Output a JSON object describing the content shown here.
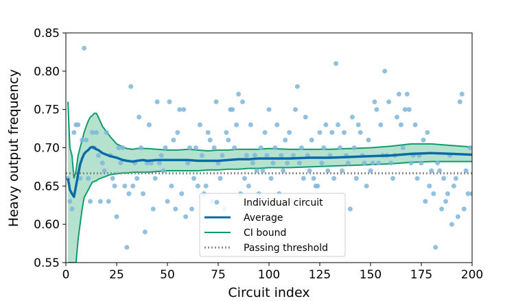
{
  "chart_data": {
    "type": "scatter",
    "xlabel": "Circuit index",
    "ylabel": "Heavy output frequency",
    "xlim": [
      0,
      200
    ],
    "ylim": [
      0.55,
      0.85
    ],
    "xticks": [
      0,
      25,
      50,
      75,
      100,
      125,
      150,
      175,
      200
    ],
    "yticks": [
      0.55,
      0.6,
      0.65,
      0.7,
      0.75,
      0.8,
      0.85
    ],
    "grid": false,
    "legend_position": "bottom-center",
    "series": [
      {
        "name": "Individual circuit",
        "kind": "scatter",
        "color": "#7eb6d9",
        "points": [
          [
            1,
            0.66
          ],
          [
            2,
            0.63
          ],
          [
            3,
            0.62
          ],
          [
            4,
            0.72
          ],
          [
            5,
            0.73
          ],
          [
            6,
            0.73
          ],
          [
            7,
            0.66
          ],
          [
            8,
            0.71
          ],
          [
            9,
            0.83
          ],
          [
            10,
            0.71
          ],
          [
            11,
            0.66
          ],
          [
            12,
            0.63
          ],
          [
            13,
            0.72
          ],
          [
            14,
            0.7
          ],
          [
            15,
            0.72
          ],
          [
            16,
            0.69
          ],
          [
            17,
            0.63
          ],
          [
            18,
            0.68
          ],
          [
            19,
            0.67
          ],
          [
            20,
            0.72
          ],
          [
            21,
            0.63
          ],
          [
            22,
            0.69
          ],
          [
            23,
            0.66
          ],
          [
            24,
            0.65
          ],
          [
            25,
            0.61
          ],
          [
            26,
            0.7
          ],
          [
            27,
            0.68
          ],
          [
            28,
            0.7
          ],
          [
            29,
            0.65
          ],
          [
            30,
            0.57
          ],
          [
            31,
            0.64
          ],
          [
            32,
            0.78
          ],
          [
            33,
            0.65
          ],
          [
            34,
            0.68
          ],
          [
            35,
            0.66
          ],
          [
            36,
            0.74
          ],
          [
            37,
            0.7
          ],
          [
            38,
            0.64
          ],
          [
            39,
            0.59
          ],
          [
            40,
            0.68
          ],
          [
            41,
            0.73
          ],
          [
            42,
            0.68
          ],
          [
            43,
            0.62
          ],
          [
            44,
            0.66
          ],
          [
            45,
            0.76
          ],
          [
            46,
            0.68
          ],
          [
            47,
            0.69
          ],
          [
            48,
            0.67
          ],
          [
            49,
            0.7
          ],
          [
            50,
            0.63
          ],
          [
            51,
            0.76
          ],
          [
            52,
            0.65
          ],
          [
            53,
            0.71
          ],
          [
            54,
            0.62
          ],
          [
            55,
            0.72
          ],
          [
            56,
            0.75
          ],
          [
            57,
            0.64
          ],
          [
            58,
            0.75
          ],
          [
            59,
            0.61
          ],
          [
            60,
            0.68
          ],
          [
            61,
            0.7
          ],
          [
            62,
            0.62
          ],
          [
            63,
            0.66
          ],
          [
            64,
            0.7
          ],
          [
            65,
            0.65
          ],
          [
            66,
            0.73
          ],
          [
            67,
            0.69
          ],
          [
            68,
            0.64
          ],
          [
            69,
            0.65
          ],
          [
            70,
            0.72
          ],
          [
            71,
            0.71
          ],
          [
            72,
            0.63
          ],
          [
            73,
            0.7
          ],
          [
            74,
            0.76
          ],
          [
            75,
            0.68
          ],
          [
            76,
            0.66
          ],
          [
            77,
            0.69
          ],
          [
            78,
            0.62
          ],
          [
            79,
            0.72
          ],
          [
            80,
            0.71
          ],
          [
            81,
            0.75
          ],
          [
            82,
            0.75
          ],
          [
            83,
            0.7
          ],
          [
            84,
            0.73
          ],
          [
            85,
            0.77
          ],
          [
            86,
            0.64
          ],
          [
            87,
            0.76
          ],
          [
            88,
            0.66
          ],
          [
            89,
            0.69
          ],
          [
            90,
            0.65
          ],
          [
            91,
            0.73
          ],
          [
            92,
            0.68
          ],
          [
            93,
            0.69
          ],
          [
            94,
            0.67
          ],
          [
            95,
            0.64
          ],
          [
            96,
            0.7
          ],
          [
            97,
            0.67
          ],
          [
            98,
            0.72
          ],
          [
            99,
            0.69
          ],
          [
            100,
            0.75
          ],
          [
            101,
            0.66
          ],
          [
            102,
            0.68
          ],
          [
            103,
            0.7
          ],
          [
            104,
            0.73
          ],
          [
            105,
            0.64
          ],
          [
            106,
            0.69
          ],
          [
            107,
            0.67
          ],
          [
            108,
            0.71
          ],
          [
            109,
            0.68
          ],
          [
            110,
            0.72
          ],
          [
            111,
            0.63
          ],
          [
            112,
            0.69
          ],
          [
            113,
            0.75
          ],
          [
            114,
            0.78
          ],
          [
            115,
            0.68
          ],
          [
            116,
            0.7
          ],
          [
            117,
            0.66
          ],
          [
            118,
            0.74
          ],
          [
            119,
            0.69
          ],
          [
            120,
            0.67
          ],
          [
            121,
            0.71
          ],
          [
            122,
            0.66
          ],
          [
            123,
            0.65
          ],
          [
            124,
            0.65
          ],
          [
            125,
            0.72
          ],
          [
            126,
            0.68
          ],
          [
            127,
            0.7
          ],
          [
            128,
            0.73
          ],
          [
            129,
            0.67
          ],
          [
            130,
            0.69
          ],
          [
            131,
            0.72
          ],
          [
            132,
            0.66
          ],
          [
            133,
            0.81
          ],
          [
            134,
            0.73
          ],
          [
            135,
            0.7
          ],
          [
            136,
            0.67
          ],
          [
            137,
            0.72
          ],
          [
            138,
            0.69
          ],
          [
            139,
            0.68
          ],
          [
            140,
            0.62
          ],
          [
            141,
            0.74
          ],
          [
            142,
            0.7
          ],
          [
            143,
            0.66
          ],
          [
            144,
            0.73
          ],
          [
            145,
            0.72
          ],
          [
            146,
            0.69
          ],
          [
            147,
            0.68
          ],
          [
            148,
            0.65
          ],
          [
            149,
            0.71
          ],
          [
            150,
            0.67
          ],
          [
            151,
            0.68
          ],
          [
            152,
            0.76
          ],
          [
            153,
            0.75
          ],
          [
            154,
            0.68
          ],
          [
            155,
            0.73
          ],
          [
            156,
            0.69
          ],
          [
            157,
            0.8
          ],
          [
            158,
            0.69
          ],
          [
            159,
            0.76
          ],
          [
            160,
            0.68
          ],
          [
            161,
            0.66
          ],
          [
            162,
            0.69
          ],
          [
            163,
            0.74
          ],
          [
            164,
            0.77
          ],
          [
            165,
            0.73
          ],
          [
            166,
            0.7
          ],
          [
            167,
            0.75
          ],
          [
            168,
            0.77
          ],
          [
            169,
            0.75
          ],
          [
            170,
            0.68
          ],
          [
            171,
            0.69
          ],
          [
            172,
            0.73
          ],
          [
            173,
            0.66
          ],
          [
            174,
            0.69
          ],
          [
            175,
            0.68
          ],
          [
            176,
            0.71
          ],
          [
            177,
            0.63
          ],
          [
            178,
            0.72
          ],
          [
            179,
            0.65
          ],
          [
            180,
            0.67
          ],
          [
            181,
            0.64
          ],
          [
            182,
            0.57
          ],
          [
            183,
            0.68
          ],
          [
            184,
            0.67
          ],
          [
            185,
            0.62
          ],
          [
            186,
            0.66
          ],
          [
            187,
            0.63
          ],
          [
            188,
            0.64
          ],
          [
            189,
            0.69
          ],
          [
            190,
            0.6
          ],
          [
            191,
            0.65
          ],
          [
            192,
            0.66
          ],
          [
            193,
            0.61
          ],
          [
            194,
            0.76
          ],
          [
            195,
            0.77
          ],
          [
            196,
            0.62
          ],
          [
            197,
            0.67
          ],
          [
            198,
            0.64
          ],
          [
            199,
            0.7
          ],
          [
            200,
            0.64
          ]
        ]
      },
      {
        "name": "Average",
        "kind": "line",
        "color": "#0a6aa8",
        "x": [
          1,
          2,
          3,
          4,
          5,
          6,
          7,
          8,
          9,
          10,
          11,
          12,
          13,
          14,
          15,
          16,
          18,
          20,
          22,
          25,
          28,
          30,
          33,
          35,
          38,
          40,
          45,
          50,
          55,
          60,
          65,
          70,
          75,
          80,
          85,
          90,
          95,
          100,
          110,
          120,
          130,
          140,
          150,
          160,
          170,
          180,
          190,
          200
        ],
        "y": [
          0.66,
          0.645,
          0.64,
          0.636,
          0.65,
          0.665,
          0.678,
          0.686,
          0.692,
          0.695,
          0.697,
          0.7,
          0.701,
          0.7,
          0.698,
          0.697,
          0.693,
          0.691,
          0.689,
          0.687,
          0.684,
          0.683,
          0.682,
          0.683,
          0.684,
          0.683,
          0.684,
          0.684,
          0.684,
          0.684,
          0.683,
          0.683,
          0.683,
          0.684,
          0.685,
          0.685,
          0.686,
          0.686,
          0.686,
          0.687,
          0.687,
          0.688,
          0.689,
          0.69,
          0.692,
          0.693,
          0.692,
          0.691
        ]
      },
      {
        "name": "CI bound",
        "kind": "band",
        "color": "#109b6b",
        "fill": "#a8dcc7",
        "x": [
          1,
          2,
          3,
          4,
          5,
          6,
          7,
          8,
          9,
          10,
          11,
          12,
          13,
          14,
          15,
          16,
          18,
          20,
          22,
          25,
          28,
          30,
          33,
          35,
          38,
          40,
          45,
          50,
          55,
          60,
          65,
          70,
          75,
          80,
          85,
          90,
          95,
          100,
          110,
          120,
          130,
          140,
          150,
          160,
          170,
          180,
          190,
          200
        ],
        "upper": [
          0.76,
          0.7,
          0.69,
          0.66,
          0.67,
          0.69,
          0.7,
          0.71,
          0.72,
          0.728,
          0.735,
          0.74,
          0.742,
          0.745,
          0.745,
          0.74,
          0.728,
          0.721,
          0.714,
          0.705,
          0.701,
          0.699,
          0.698,
          0.699,
          0.699,
          0.699,
          0.698,
          0.697,
          0.697,
          0.698,
          0.697,
          0.696,
          0.697,
          0.697,
          0.698,
          0.698,
          0.698,
          0.699,
          0.698,
          0.698,
          0.698,
          0.699,
          0.7,
          0.702,
          0.705,
          0.705,
          0.703,
          0.701
        ],
        "lower": [
          0.55,
          0.55,
          0.55,
          0.55,
          0.55,
          0.58,
          0.6,
          0.62,
          0.635,
          0.64,
          0.645,
          0.65,
          0.655,
          0.656,
          0.657,
          0.659,
          0.661,
          0.663,
          0.665,
          0.666,
          0.667,
          0.667,
          0.668,
          0.668,
          0.668,
          0.668,
          0.669,
          0.67,
          0.67,
          0.67,
          0.67,
          0.671,
          0.671,
          0.672,
          0.672,
          0.673,
          0.673,
          0.674,
          0.674,
          0.675,
          0.676,
          0.677,
          0.678,
          0.679,
          0.681,
          0.682,
          0.682,
          0.682
        ]
      },
      {
        "name": "Passing threshold",
        "kind": "hline",
        "color": "#8a8a8a",
        "y": 0.6667
      }
    ]
  }
}
